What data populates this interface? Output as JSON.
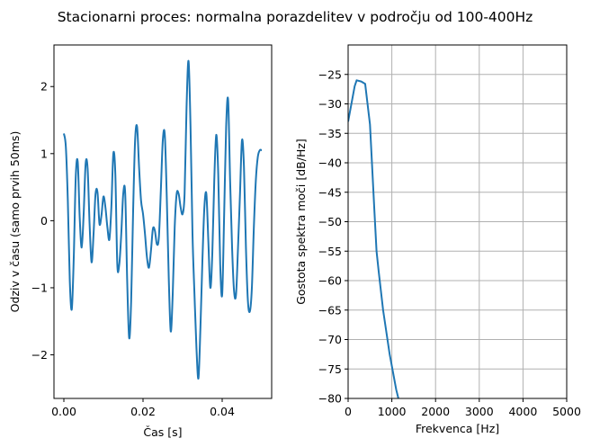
{
  "suptitle": "Stacionarni proces: normalna porazdelitev v področju od 100-400Hz",
  "chart_data": [
    {
      "type": "line",
      "xlabel": "Čas [s]",
      "ylabel": "Odziv v času (samo prvih 50ms)",
      "xlim": [
        -0.0025,
        0.0525
      ],
      "ylim": [
        -2.65,
        2.62
      ],
      "xticks": [
        0.0,
        0.02,
        0.04
      ],
      "xtick_labels": [
        "0.00",
        "0.02",
        "0.04"
      ],
      "yticks": [
        -2,
        -1,
        0,
        1,
        2
      ],
      "ytick_labels": [
        "−2",
        "−1",
        "0",
        "1",
        "2"
      ],
      "grid": false,
      "color": "#1f77b4",
      "x": [
        0.0,
        0.0005,
        0.001,
        0.0015,
        0.002,
        0.0025,
        0.003,
        0.0035,
        0.004,
        0.0045,
        0.005,
        0.0055,
        0.006,
        0.0065,
        0.007,
        0.0075,
        0.008,
        0.0085,
        0.009,
        0.0095,
        0.01,
        0.0105,
        0.011,
        0.0115,
        0.012,
        0.0125,
        0.013,
        0.0135,
        0.014,
        0.0145,
        0.015,
        0.0155,
        0.016,
        0.0165,
        0.017,
        0.0175,
        0.018,
        0.0185,
        0.019,
        0.0195,
        0.02,
        0.0205,
        0.021,
        0.0215,
        0.022,
        0.0225,
        0.023,
        0.0235,
        0.024,
        0.0245,
        0.025,
        0.0255,
        0.026,
        0.0265,
        0.027,
        0.0275,
        0.028,
        0.0285,
        0.029,
        0.0295,
        0.03,
        0.0305,
        0.031,
        0.0315,
        0.032,
        0.0325,
        0.033,
        0.0335,
        0.034,
        0.0345,
        0.035,
        0.0355,
        0.036,
        0.0365,
        0.037,
        0.0375,
        0.038,
        0.0385,
        0.039,
        0.0395,
        0.04,
        0.0405,
        0.041,
        0.0415,
        0.042,
        0.0425,
        0.043,
        0.0435,
        0.044,
        0.0445,
        0.045,
        0.0455,
        0.046,
        0.0465,
        0.047,
        0.0475,
        0.048,
        0.0485,
        0.049,
        0.0495,
        0.05
      ],
      "y": [
        1.3,
        1.1,
        0.3,
        -0.9,
        -1.32,
        -0.55,
        0.65,
        0.88,
        0.05,
        -0.4,
        0.1,
        0.85,
        0.78,
        -0.05,
        -0.62,
        -0.2,
        0.4,
        0.42,
        -0.05,
        0.08,
        0.36,
        0.2,
        -0.1,
        -0.28,
        0.2,
        1.0,
        0.7,
        -0.65,
        -0.65,
        -0.2,
        0.4,
        0.4,
        -0.9,
        -1.75,
        -1.2,
        0.15,
        1.2,
        1.4,
        0.8,
        0.3,
        0.1,
        -0.2,
        -0.55,
        -0.7,
        -0.45,
        -0.12,
        -0.15,
        -0.35,
        -0.25,
        0.45,
        1.2,
        1.28,
        0.35,
        -0.85,
        -1.65,
        -1.1,
        -0.1,
        0.4,
        0.4,
        0.2,
        0.1,
        0.4,
        1.7,
        2.38,
        1.4,
        -0.2,
        -1.1,
        -1.9,
        -2.35,
        -1.6,
        -0.6,
        0.2,
        0.4,
        -0.3,
        -1.0,
        -0.5,
        0.6,
        1.28,
        0.7,
        -0.65,
        -1.1,
        0.1,
        1.4,
        1.8,
        0.6,
        -0.4,
        -1.05,
        -1.1,
        -0.4,
        0.4,
        1.2,
        0.8,
        -0.4,
        -1.2,
        -1.35,
        -1.0,
        -0.1,
        0.6,
        0.95,
        1.05,
        1.05
      ]
    },
    {
      "type": "line",
      "xlabel": "Frekvenca [Hz]",
      "ylabel": "Gostota spektra moči [dB/Hz]",
      "xlim": [
        0,
        5000
      ],
      "ylim": [
        -80,
        -20
      ],
      "xticks": [
        0,
        1000,
        2000,
        3000,
        4000,
        5000
      ],
      "xtick_labels": [
        "0",
        "1000",
        "2000",
        "3000",
        "4000",
        "5000"
      ],
      "yticks": [
        -80,
        -75,
        -70,
        -65,
        -60,
        -55,
        -50,
        -45,
        -40,
        -35,
        -30,
        -25
      ],
      "ytick_labels": [
        "−80",
        "−75",
        "−70",
        "−65",
        "−60",
        "−55",
        "−50",
        "−45",
        "−40",
        "−35",
        "−30",
        "−25"
      ],
      "grid": true,
      "color": "#1f77b4",
      "x": [
        0,
        100,
        150,
        195,
        300,
        390,
        500,
        600,
        650,
        700,
        800,
        900,
        950,
        1000,
        1050,
        1100,
        1150
      ],
      "y": [
        -33,
        -29,
        -27,
        -26,
        -26.2,
        -26.6,
        -33.5,
        -48,
        -55,
        -58.5,
        -65,
        -70,
        -72.5,
        -74.5,
        -76.5,
        -78.5,
        -80
      ]
    }
  ]
}
